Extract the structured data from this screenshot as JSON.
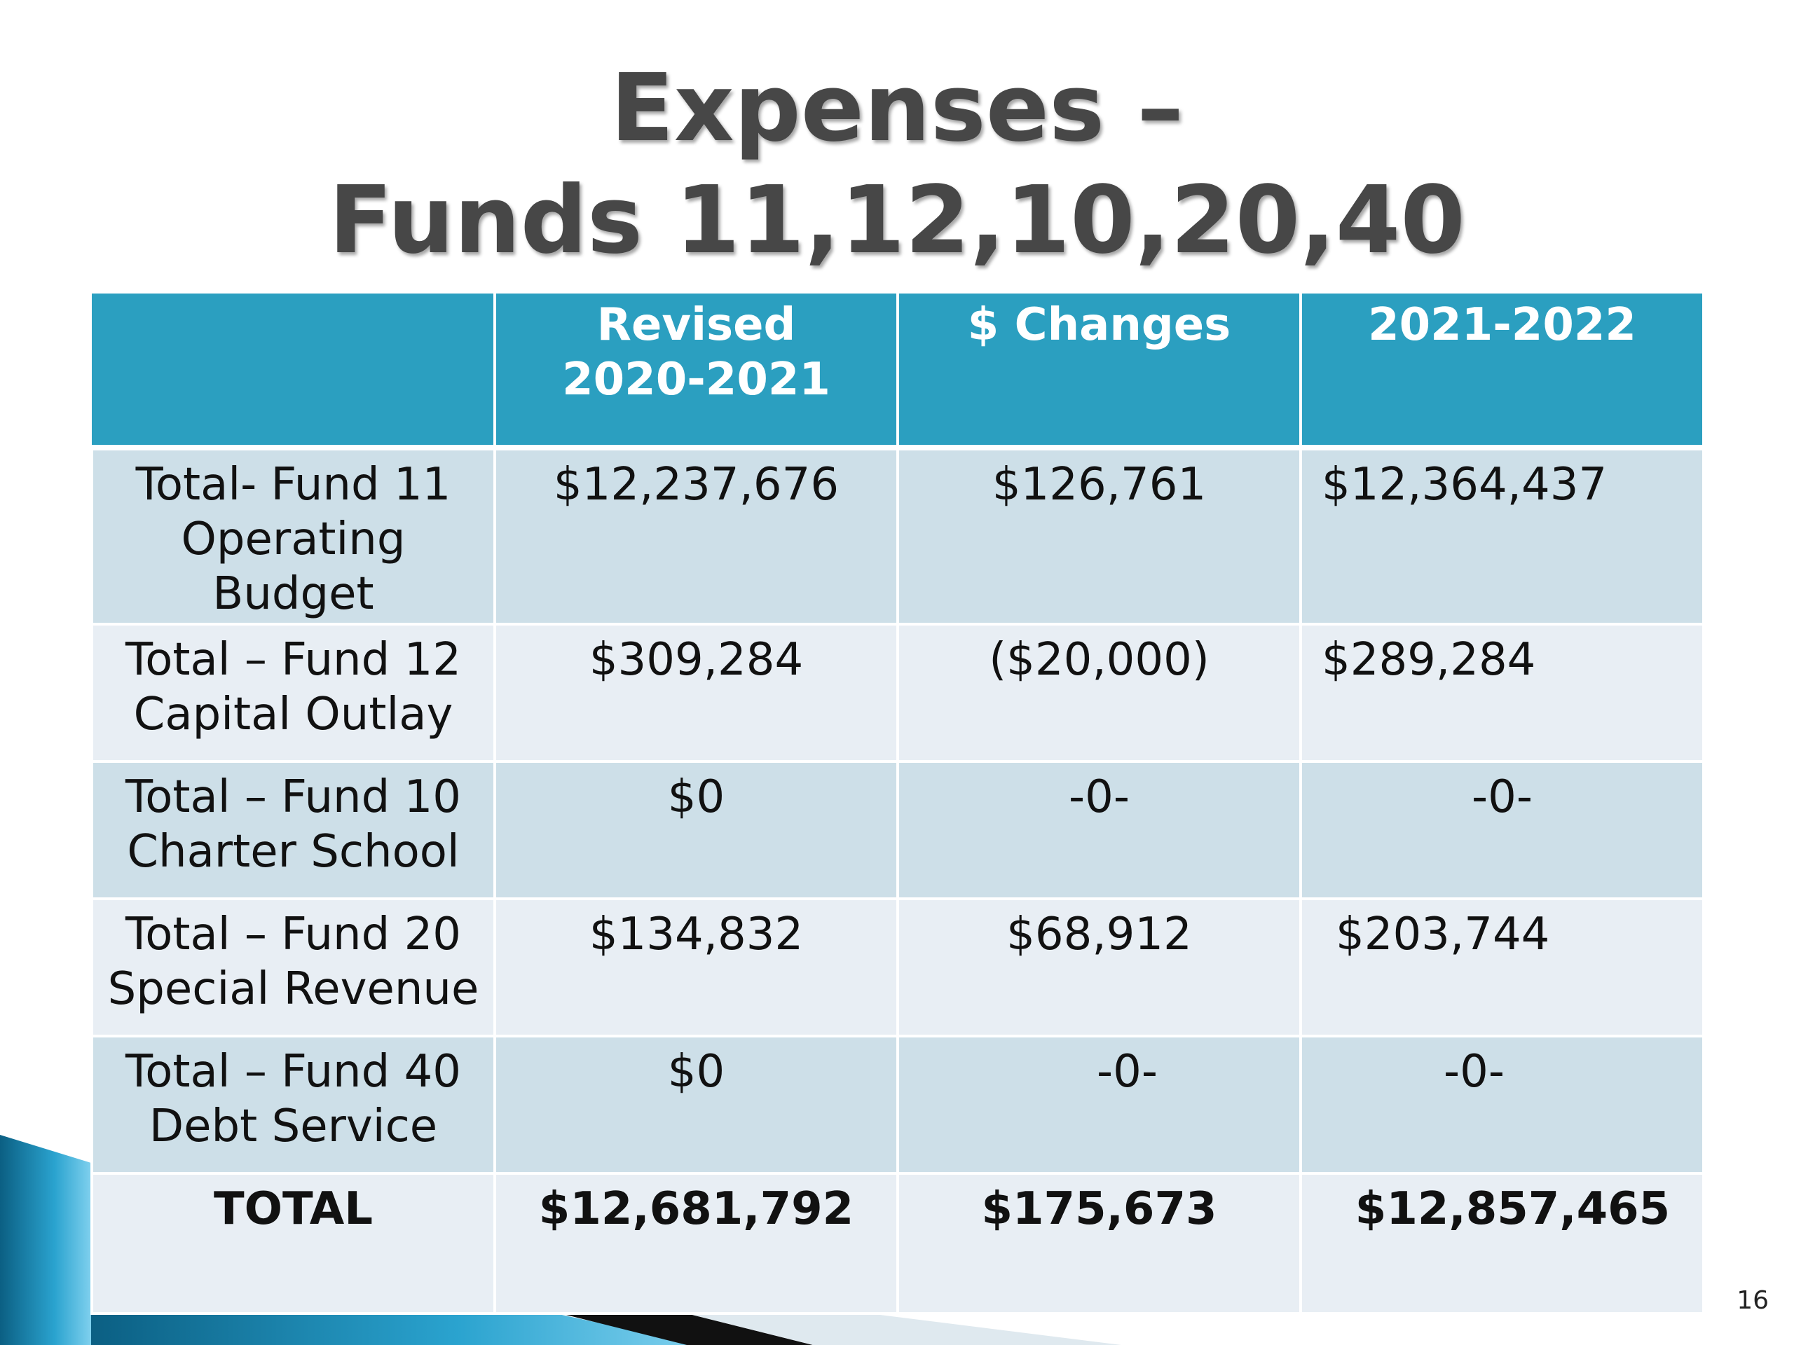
{
  "title": {
    "line1": "Expenses –",
    "line2": "Funds 11,12,10,20,40"
  },
  "table": {
    "headers": [
      "",
      "Revised 2020-2021",
      "$ Changes",
      "2021-2022"
    ],
    "header_lines": {
      "col1_line1": "Revised",
      "col1_line2": "2020-2021",
      "col2": "$ Changes",
      "col3": "2021-2022"
    },
    "rows": [
      {
        "label_lines": [
          "Total- Fund 11",
          "Operating",
          "Budget"
        ],
        "revised": "$12,237,676",
        "changes": "$126,761",
        "next": "$12,364,437"
      },
      {
        "label_lines": [
          "Total – Fund 12",
          "Capital Outlay"
        ],
        "revised": "$309,284",
        "changes": "($20,000)",
        "next": "$289,284"
      },
      {
        "label_lines": [
          "Total – Fund 10",
          "Charter School"
        ],
        "revised": "$0",
        "changes": "-0-",
        "next": "-0-"
      },
      {
        "label_lines": [
          "Total – Fund 20",
          "Special Revenue"
        ],
        "revised": "$134,832",
        "changes": "$68,912",
        "next": "$203,744"
      },
      {
        "label_lines": [
          "Total – Fund 40",
          "Debt Service"
        ],
        "revised": "$0",
        "changes": "-0-",
        "next": "-0-"
      },
      {
        "label_lines": [
          "TOTAL"
        ],
        "revised": "$12,681,792",
        "changes": "$175,673",
        "next": "$12,857,465"
      }
    ]
  },
  "page_number": "16",
  "colors": {
    "header_bg": "#2b9fc0",
    "row_dark": "#cddfe8",
    "row_light": "#e8eef4",
    "title": "#474747",
    "accent_teal": "#1a8fb3"
  }
}
